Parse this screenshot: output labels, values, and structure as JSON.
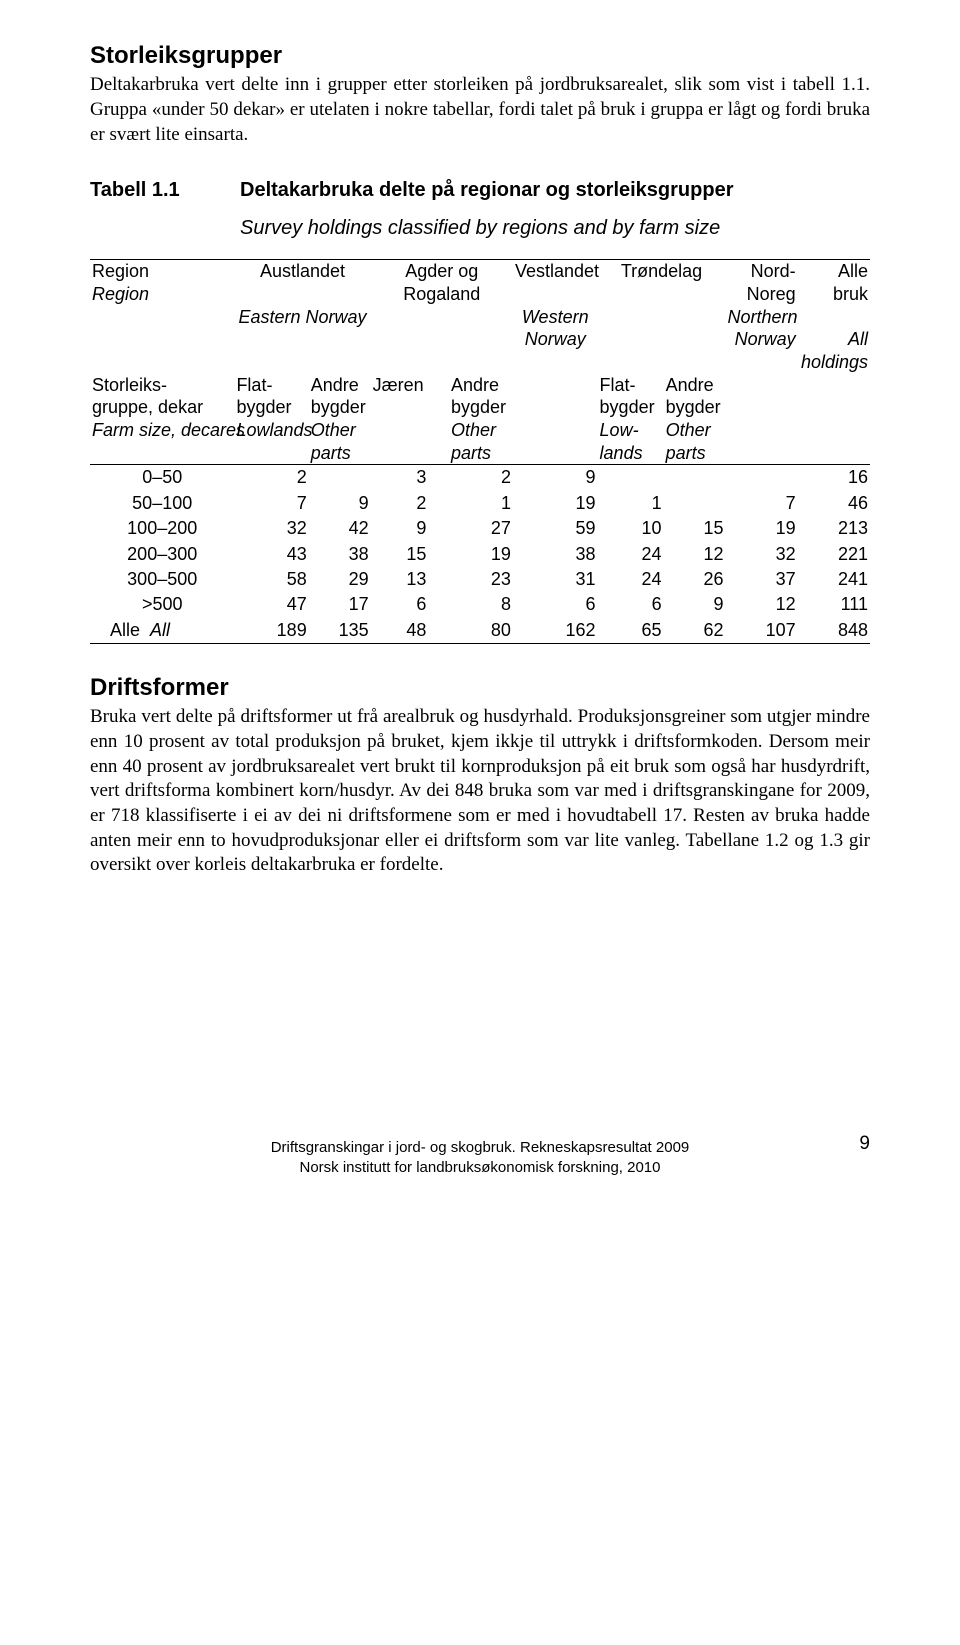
{
  "sec1": {
    "heading": "Storleiksgrupper",
    "para": "Deltakarbruka vert delte inn i grupper etter storleiken på jordbruksarealet, slik som vist i tabell 1.1. Gruppa «under 50 dekar» er utelaten i nokre tabellar, fordi talet på bruk i gruppa er lågt og fordi bruka er svært lite einsarta."
  },
  "table": {
    "label": "Tabell 1.1",
    "title": "Deltakarbruka delte på regionar og storleiksgrupper",
    "subtitle": "Survey holdings classified by regions and by farm size",
    "h": {
      "region": "Region",
      "region_it": "Region",
      "austlandet": "Austlandet",
      "eastern": "Eastern Norway",
      "agder1": "Agder og",
      "agder2": "Rogaland",
      "vest": "Vestlandet",
      "western1": "Western",
      "western2": "Norway",
      "trond": "Trøndelag",
      "nord": "Nord-",
      "noreg": "Noreg",
      "northern1": "Northern",
      "northern2": "Norway",
      "alle": "Alle",
      "bruk": "bruk",
      "all": "All",
      "holdings": "holdings",
      "storleiks": "Storleiks-",
      "gruppe": "gruppe, dekar",
      "farmsize": "Farm size, decares",
      "flat": "Flat-",
      "bygder": "bygder",
      "lowlands": "Lowlands",
      "andre": "Andre",
      "other": "Other",
      "parts": "parts",
      "jaeren": "Jæren",
      "low": "Low-",
      "lands": "lands"
    },
    "rows": [
      {
        "label": "0–50",
        "c": [
          "2",
          "",
          "3",
          "",
          "2",
          "9",
          "",
          "",
          "",
          "16"
        ]
      },
      {
        "label": "50–100",
        "c": [
          "7",
          "9",
          "2",
          "",
          "1",
          "19",
          "1",
          "",
          "7",
          "46"
        ]
      },
      {
        "label": "100–200",
        "c": [
          "32",
          "42",
          "9",
          "",
          "27",
          "59",
          "10",
          "15",
          "19",
          "213"
        ]
      },
      {
        "label": "200–300",
        "c": [
          "43",
          "38",
          "15",
          "",
          "19",
          "38",
          "24",
          "12",
          "32",
          "221"
        ]
      },
      {
        "label": "300–500",
        "c": [
          "58",
          "29",
          "13",
          "",
          "23",
          "31",
          "24",
          "26",
          "37",
          "241"
        ]
      },
      {
        "label": ">500",
        "c": [
          "47",
          "17",
          "6",
          "",
          "8",
          "6",
          "6",
          "9",
          "12",
          "111"
        ]
      }
    ],
    "total": {
      "label": "Alle",
      "label_it": "All",
      "c": [
        "189",
        "135",
        "48",
        "",
        "80",
        "162",
        "65",
        "62",
        "107",
        "848"
      ]
    }
  },
  "sec2": {
    "heading": "Driftsformer",
    "para": "Bruka vert delte på driftsformer ut frå arealbruk og husdyrhald. Produksjonsgreiner som utgjer mindre enn 10 prosent av total produksjon på bruket, kjem ikkje til uttrykk i driftsformkoden. Dersom meir enn 40 prosent av jordbruksarealet vert brukt til kornproduksjon på eit bruk som også har husdyrdrift, vert driftsforma kombinert korn/husdyr. Av dei 848 bruka som var med i driftsgranskingane for 2009, er 718 klassifiserte i ei av dei ni driftsformene som er med i hovudtabell 17. Resten av bruka hadde anten meir enn to hovudproduksjonar eller ei driftsform som var lite vanleg. Tabellane 1.2 og 1.3 gir oversikt over korleis deltakarbruka er fordelte."
  },
  "footer": {
    "l1": "Driftsgranskingar i jord- og skogbruk. Rekneskapsresultat 2009",
    "l2": "Norsk institutt for landbruksøkonomisk forskning, 2010",
    "page": "9"
  }
}
